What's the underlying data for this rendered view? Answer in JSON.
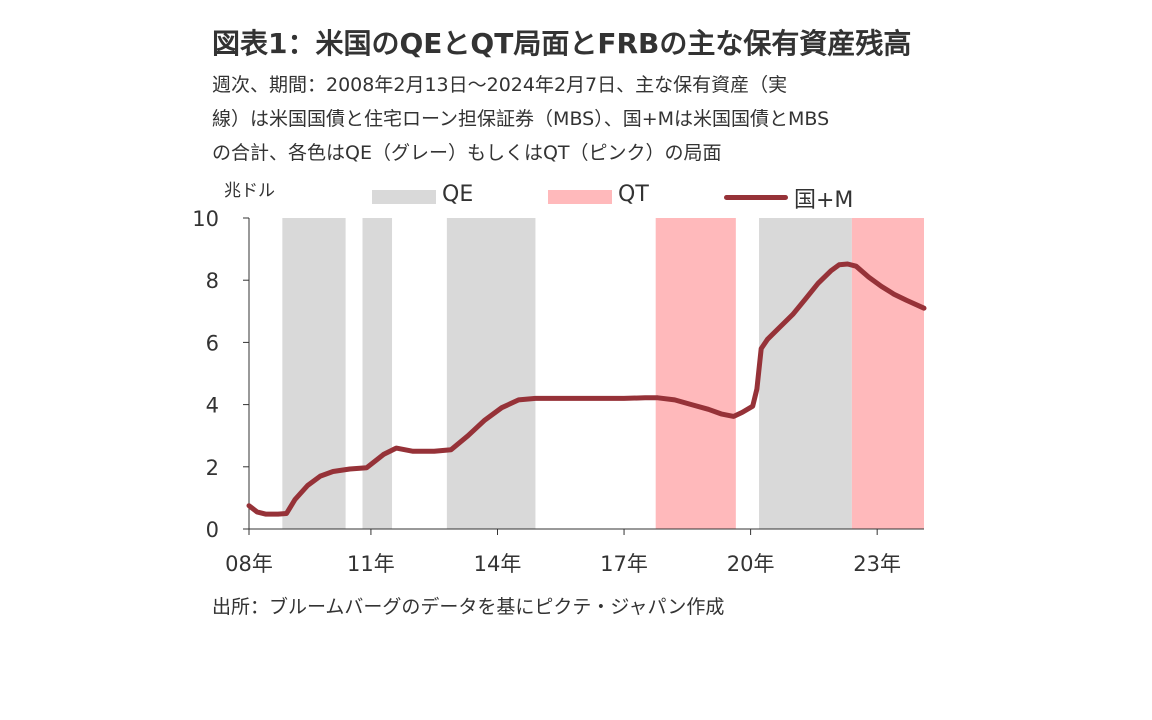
{
  "title": "図表1：米国のQEとQT局面とFRBの主な保有資産残高",
  "subtitle_lines": [
    "週次、期間：2008年2月13日～2024年2月7日、主な保有資産（実",
    "線）は米国国債と住宅ローン担保証券（MBS）、国+Mは米国国債とMBS",
    "の合計、各色はQE（グレー）もしくはQT（ピンク）の局面"
  ],
  "unit_label": "兆ドル",
  "legend": {
    "qe": "QE",
    "qt": "QT",
    "line": "国+M"
  },
  "source": "出所：ブルームバーグのデータを基にピクテ・ジャパン作成",
  "colors": {
    "qe_shade": "#d9d9d9",
    "qt_shade": "#ffb9bb",
    "line": "#963238",
    "axis": "#333333"
  },
  "chart_data": {
    "type": "line",
    "title": "図表1：米国のQEとQT局面とFRBの主な保有資産残高",
    "xlabel": "",
    "ylabel": "兆ドル",
    "xlim": [
      2008.11,
      2024.11
    ],
    "ylim": [
      0,
      10
    ],
    "y_ticks": [
      0,
      2,
      4,
      6,
      8,
      10
    ],
    "x_ticks": [
      {
        "x": 2008,
        "label": "08年"
      },
      {
        "x": 2011,
        "label": "11年"
      },
      {
        "x": 2014,
        "label": "14年"
      },
      {
        "x": 2017,
        "label": "17年"
      },
      {
        "x": 2020,
        "label": "20年"
      },
      {
        "x": 2023,
        "label": "23年"
      }
    ],
    "grid": false,
    "legend_position": "top",
    "shaded_regions": [
      {
        "type": "QE",
        "start": 2008.9,
        "end": 2010.4
      },
      {
        "type": "QE",
        "start": 2010.8,
        "end": 2011.5
      },
      {
        "type": "QE",
        "start": 2012.8,
        "end": 2014.9
      },
      {
        "type": "QT",
        "start": 2017.75,
        "end": 2019.65
      },
      {
        "type": "QE",
        "start": 2020.2,
        "end": 2022.4
      },
      {
        "type": "QT",
        "start": 2022.4,
        "end": 2024.11
      }
    ],
    "series": [
      {
        "name": "国+M",
        "x": [
          2008.11,
          2008.3,
          2008.5,
          2008.8,
          2009.0,
          2009.2,
          2009.5,
          2009.8,
          2010.1,
          2010.5,
          2010.9,
          2011.3,
          2011.6,
          2012.0,
          2012.5,
          2012.9,
          2013.3,
          2013.7,
          2014.1,
          2014.5,
          2014.9,
          2015.5,
          2016.0,
          2016.5,
          2017.0,
          2017.5,
          2017.8,
          2018.2,
          2018.6,
          2019.0,
          2019.3,
          2019.6,
          2019.8,
          2020.05,
          2020.15,
          2020.25,
          2020.4,
          2020.7,
          2021.0,
          2021.3,
          2021.6,
          2021.9,
          2022.1,
          2022.3,
          2022.5,
          2022.8,
          2023.1,
          2023.4,
          2023.7,
          2024.11
        ],
        "values": [
          0.75,
          0.55,
          0.48,
          0.48,
          0.5,
          0.95,
          1.4,
          1.7,
          1.85,
          1.93,
          1.97,
          2.4,
          2.6,
          2.5,
          2.5,
          2.55,
          3.0,
          3.5,
          3.9,
          4.15,
          4.2,
          4.2,
          4.2,
          4.2,
          4.2,
          4.22,
          4.22,
          4.15,
          4.0,
          3.85,
          3.7,
          3.62,
          3.75,
          3.95,
          4.5,
          5.8,
          6.1,
          6.5,
          6.9,
          7.4,
          7.9,
          8.3,
          8.5,
          8.52,
          8.45,
          8.1,
          7.8,
          7.55,
          7.35,
          7.1
        ]
      }
    ]
  }
}
